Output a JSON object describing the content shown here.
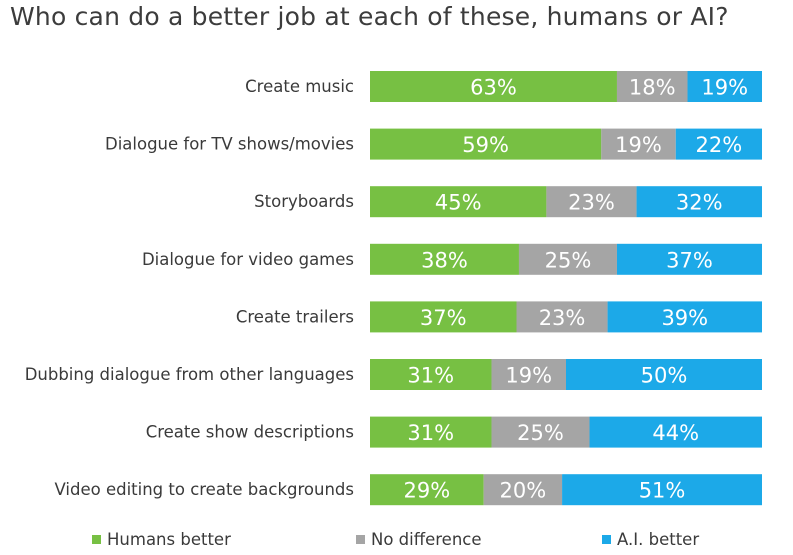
{
  "chart_data": {
    "type": "bar",
    "orientation": "horizontal",
    "stacked": true,
    "title": "Who can do a better job at each of these, humans or AI?",
    "categories": [
      "Create music",
      "Dialogue for TV shows/movies",
      "Storyboards",
      "Dialogue for video games",
      "Create trailers",
      "Dubbing dialogue from other languages",
      "Create show descriptions",
      "Video editing to create backgrounds"
    ],
    "series": [
      {
        "name": "Humans better",
        "color": "#77c043",
        "values": [
          63,
          59,
          45,
          38,
          37,
          31,
          31,
          29
        ],
        "labels": [
          "63%",
          "59%",
          "45%",
          "38%",
          "37%",
          "31%",
          "31%",
          "29%"
        ]
      },
      {
        "name": "No difference",
        "color": "#a5a5a5",
        "values": [
          18,
          19,
          23,
          25,
          23,
          19,
          25,
          20
        ],
        "labels": [
          "18%",
          "19%",
          "23%",
          "25%",
          "23%",
          "19%",
          "25%",
          "20%"
        ]
      },
      {
        "name": "A.I. better",
        "color": "#1ca9e8",
        "values": [
          19,
          22,
          32,
          37,
          39,
          50,
          44,
          51
        ],
        "labels": [
          "19%",
          "22%",
          "32%",
          "37%",
          "39%",
          "50%",
          "44%",
          "51%"
        ]
      }
    ],
    "legend_position": "bottom",
    "grid": false
  },
  "legend": [
    {
      "label": "Humans better",
      "color": "#77c043"
    },
    {
      "label": "No difference",
      "color": "#a5a5a5"
    },
    {
      "label": "A.I. better",
      "color": "#1ca9e8"
    }
  ]
}
